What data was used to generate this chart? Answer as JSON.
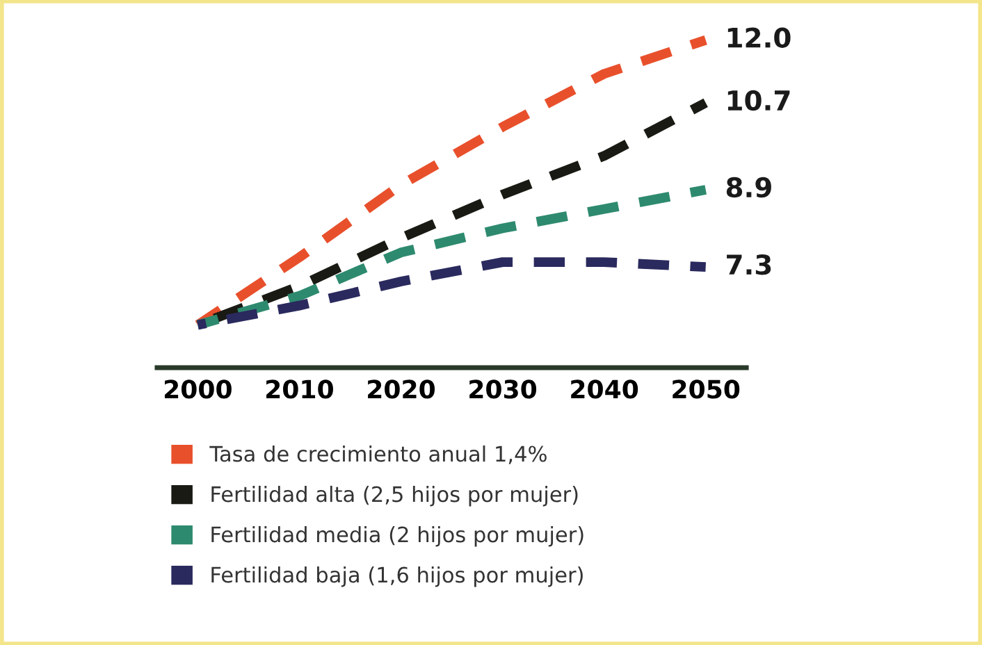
{
  "chart_data": {
    "type": "line",
    "x": [
      2000,
      2010,
      2020,
      2030,
      2040,
      2050
    ],
    "xlim": [
      1996,
      2054
    ],
    "xticks": [
      2000,
      2010,
      2020,
      2030,
      2040,
      2050
    ],
    "series": [
      {
        "name": "Tasa de crecimiento anual 1,4%",
        "color": "#e8502c",
        "values": [
          6.1,
          7.5,
          9.0,
          10.2,
          11.3,
          12.0
        ],
        "value_labels": [
          null,
          null,
          null,
          null,
          null,
          "12.0"
        ]
      },
      {
        "name": "Fertilidad alta (2,5 hijos por mujer)",
        "color": "#1a1a14",
        "values": [
          6.1,
          6.9,
          7.9,
          8.8,
          9.6,
          10.7
        ],
        "value_labels": [
          null,
          null,
          null,
          null,
          null,
          "10.7"
        ]
      },
      {
        "name": "Fertilidad media (2 hijos por mujer)",
        "color": "#2e8a6e",
        "values": [
          6.1,
          6.7,
          7.6,
          8.1,
          8.5,
          8.9
        ],
        "value_labels": [
          null,
          null,
          null,
          null,
          null,
          "8.9"
        ]
      },
      {
        "name": "Fertilidad baja (1,6 hijos por mujer)",
        "color": "#2a2a5e",
        "values": [
          6.1,
          6.5,
          7.0,
          7.4,
          7.4,
          7.3
        ],
        "value_labels": [
          null,
          null,
          null,
          null,
          null,
          "7.3"
        ]
      }
    ],
    "line_style": "dashed",
    "marker": "none",
    "grid": false,
    "legend": "bottom",
    "tick_labels": "x"
  }
}
